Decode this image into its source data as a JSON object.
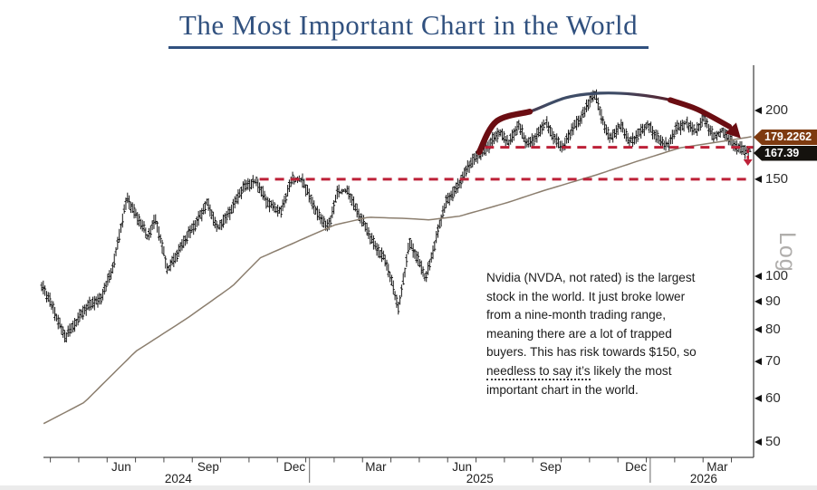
{
  "title": "The Most Important Chart in the World",
  "labels": {
    "log_axis": "Log",
    "ma_flag": "179.2262",
    "last_price_flag": "167.39"
  },
  "annotation": {
    "lines": [
      [
        {
          "t": "Nvidia (NVDA, not rated) is the largest"
        }
      ],
      [
        {
          "t": "stock in the world. It just broke lower"
        }
      ],
      [
        {
          "t": "from a nine-month trading range,"
        }
      ],
      [
        {
          "t": "meaning there are a lot of trapped"
        }
      ],
      [
        {
          "t": "buyers. This has risk towards $150, so"
        }
      ],
      [
        {
          "t": "needless to say it’s",
          "u": true
        },
        {
          "t": " likely the most"
        }
      ],
      [
        {
          "t": "important chart in the world."
        }
      ]
    ]
  },
  "chart_data": {
    "type": "ohlc-bar",
    "title": "The Most Important Chart in the World",
    "subject": "Nvidia (NVDA) daily price with long-term moving average",
    "yscale": "log",
    "ylim": [
      47,
      240
    ],
    "y_ticks": [
      200,
      150,
      100,
      90,
      80,
      70,
      60,
      50
    ],
    "ma_last_value": 179.2262,
    "last_price": 167.39,
    "x_axis": {
      "month_labels": [
        {
          "label": "Jun",
          "t": 0.113
        },
        {
          "label": "Sep",
          "t": 0.235
        },
        {
          "label": "Dec",
          "t": 0.356
        },
        {
          "label": "Mar",
          "t": 0.47
        },
        {
          "label": "Jun",
          "t": 0.591
        },
        {
          "label": "Sep",
          "t": 0.715
        },
        {
          "label": "Dec",
          "t": 0.835
        },
        {
          "label": "Mar",
          "t": 0.949
        }
      ],
      "year_labels": [
        {
          "label": "2024",
          "t": 0.193
        },
        {
          "label": "2025",
          "t": 0.616
        },
        {
          "label": "2026",
          "t": 0.93
        }
      ],
      "year_divider_t": [
        0.377,
        0.855
      ]
    },
    "price_keypoints": [
      [
        0.0,
        96
      ],
      [
        0.013,
        91
      ],
      [
        0.034,
        77
      ],
      [
        0.057,
        86
      ],
      [
        0.083,
        91
      ],
      [
        0.102,
        104
      ],
      [
        0.121,
        140
      ],
      [
        0.136,
        127
      ],
      [
        0.15,
        118
      ],
      [
        0.161,
        128
      ],
      [
        0.178,
        102
      ],
      [
        0.197,
        114
      ],
      [
        0.216,
        123
      ],
      [
        0.233,
        137
      ],
      [
        0.248,
        121
      ],
      [
        0.267,
        133
      ],
      [
        0.286,
        145
      ],
      [
        0.302,
        150
      ],
      [
        0.318,
        135
      ],
      [
        0.337,
        132
      ],
      [
        0.352,
        149
      ],
      [
        0.368,
        150
      ],
      [
        0.388,
        129
      ],
      [
        0.403,
        123
      ],
      [
        0.416,
        142
      ],
      [
        0.432,
        142
      ],
      [
        0.449,
        128
      ],
      [
        0.464,
        116
      ],
      [
        0.483,
        108
      ],
      [
        0.502,
        87
      ],
      [
        0.517,
        116
      ],
      [
        0.53,
        106
      ],
      [
        0.54,
        99
      ],
      [
        0.555,
        118
      ],
      [
        0.568,
        135
      ],
      [
        0.584,
        146
      ],
      [
        0.601,
        158
      ],
      [
        0.616,
        168
      ],
      [
        0.629,
        173
      ],
      [
        0.644,
        182
      ],
      [
        0.657,
        176
      ],
      [
        0.67,
        187
      ],
      [
        0.682,
        174
      ],
      [
        0.695,
        180
      ],
      [
        0.708,
        189
      ],
      [
        0.72,
        179
      ],
      [
        0.733,
        172
      ],
      [
        0.746,
        184
      ],
      [
        0.758,
        195
      ],
      [
        0.771,
        210
      ],
      [
        0.779,
        212
      ],
      [
        0.788,
        191
      ],
      [
        0.8,
        179
      ],
      [
        0.813,
        187
      ],
      [
        0.826,
        176
      ],
      [
        0.839,
        182
      ],
      [
        0.851,
        187
      ],
      [
        0.864,
        180
      ],
      [
        0.88,
        172
      ],
      [
        0.893,
        186
      ],
      [
        0.906,
        191
      ],
      [
        0.919,
        182
      ],
      [
        0.931,
        194
      ],
      [
        0.944,
        180
      ],
      [
        0.957,
        182
      ],
      [
        0.97,
        175
      ],
      [
        0.982,
        171
      ],
      [
        0.991,
        167.39
      ]
    ],
    "ma_keypoints": [
      [
        0.004,
        54
      ],
      [
        0.061,
        59
      ],
      [
        0.133,
        73
      ],
      [
        0.206,
        84
      ],
      [
        0.269,
        96
      ],
      [
        0.308,
        108
      ],
      [
        0.362,
        116
      ],
      [
        0.413,
        124
      ],
      [
        0.46,
        128
      ],
      [
        0.515,
        127.3
      ],
      [
        0.544,
        126.6
      ],
      [
        0.587,
        128.5
      ],
      [
        0.654,
        136
      ],
      [
        0.705,
        143
      ],
      [
        0.781,
        153
      ],
      [
        0.832,
        161
      ],
      [
        0.896,
        171
      ],
      [
        0.959,
        176
      ],
      [
        0.997,
        179.23
      ]
    ],
    "support_lines": [
      {
        "price": 150,
        "t0": 0.307,
        "t1": 0.996
      },
      {
        "price": 171.5,
        "t0": 0.623,
        "t1": 1.0
      }
    ],
    "annotations": {
      "arc_points": [
        [
          0.615,
          168
        ],
        [
          0.639,
          191
        ],
        [
          0.686,
          199
        ],
        [
          0.737,
          211
        ],
        [
          0.784,
          215
        ],
        [
          0.832,
          214
        ],
        [
          0.883,
          209
        ],
        [
          0.921,
          201
        ],
        [
          0.966,
          187
        ]
      ],
      "arc_arrow_tip": [
        0.982,
        178
      ],
      "breakdown_arrow": {
        "t": 0.992,
        "price_from": 170,
        "price_to": 163
      }
    },
    "colors": {
      "bars": "#161616",
      "ma": "#8b7e6e",
      "support": "#bd2138",
      "arc_red": "#6b0d12",
      "arc_navy": "#3e4c66",
      "axis": "#4a4a4a",
      "title_blue": "#31517f"
    }
  }
}
